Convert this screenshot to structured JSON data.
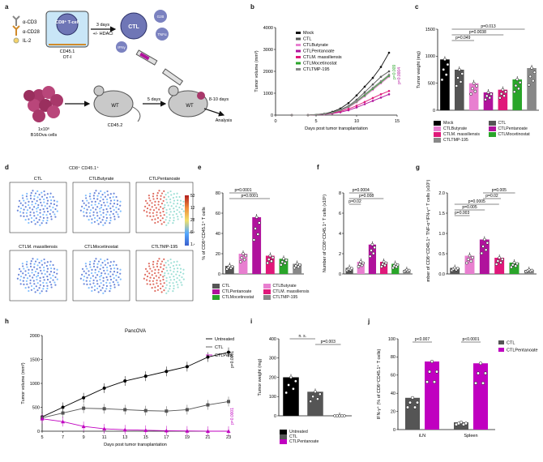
{
  "figure": {
    "panel_labels": [
      "a",
      "b",
      "c",
      "d",
      "e",
      "f",
      "g",
      "h",
      "i",
      "j"
    ]
  },
  "panel_a": {
    "antibodies": [
      "α-CD3",
      "α-CD28",
      "IL-2"
    ],
    "cell_label": "CD8⁺ T-cell",
    "cell_sub": "CD45.1 OT-I",
    "step_label": "3 days",
    "step_sub": "+/- HDACi",
    "ctl_label": "CTL",
    "cytokines": [
      "GzB",
      "TNFα",
      "IFNγ"
    ],
    "mouse1": "WT",
    "mouse1_sub": "CD45.2",
    "tumor_cells": "1x10⁶",
    "tumor_sub": "B16Ova cells",
    "mouse2": "WT",
    "days5": "5 days",
    "days810": "8-10 days",
    "analysis": "Analysis"
  },
  "chart_data": [
    {
      "id": "b",
      "type": "line",
      "title": "",
      "xlabel": "Days post tumor transplantation",
      "ylabel": "Tumor volume (mm³)",
      "x": [
        2,
        4,
        6,
        7,
        8,
        9,
        10,
        11,
        12,
        13,
        14
      ],
      "xlim": [
        0,
        15
      ],
      "ylim": [
        0,
        4000
      ],
      "xticks": [
        "0",
        "5",
        "10",
        "15"
      ],
      "yticks": [
        "0",
        "1000",
        "2000",
        "3000",
        "4000"
      ],
      "series": [
        {
          "name": "Mock",
          "color": "#111111",
          "values": [
            0,
            0,
            60,
            150,
            300,
            550,
            900,
            1300,
            1700,
            2200,
            2850
          ]
        },
        {
          "name": "CTL",
          "color": "#555555",
          "values": [
            0,
            0,
            50,
            120,
            250,
            420,
            700,
            1050,
            1400,
            1750,
            2000
          ]
        },
        {
          "name": "CTL Butyrate",
          "color": "#e87fd0",
          "values": [
            0,
            0,
            40,
            100,
            200,
            350,
            580,
            850,
            1150,
            1450,
            1750
          ]
        },
        {
          "name": "CTL Pentanoate",
          "color": "#b0129c",
          "values": [
            0,
            0,
            30,
            70,
            130,
            220,
            350,
            500,
            650,
            800,
            950
          ]
        },
        {
          "name": "CTL M. massiliensis",
          "color": "#e0187a",
          "values": [
            0,
            0,
            40,
            90,
            170,
            280,
            430,
            600,
            780,
            950,
            1100
          ]
        },
        {
          "name": "CTL Mocetinostat",
          "color": "#2aa52a",
          "values": [
            0,
            0,
            45,
            110,
            220,
            380,
            620,
            900,
            1200,
            1500,
            1800
          ]
        },
        {
          "name": "CTL TMP-195",
          "color": "#888888",
          "values": [
            0,
            0,
            45,
            110,
            220,
            390,
            640,
            950,
            1250,
            1550,
            1850
          ]
        }
      ],
      "legend": [
        "Mock",
        "CTL",
        "CTLButyrate",
        "CTLPentanoate",
        "CTLM. massiliensis",
        "CTLMocetinostat",
        "CTLTMP-195"
      ],
      "annotations": [
        "p=0.009",
        "p=0.0004"
      ]
    },
    {
      "id": "c",
      "type": "bar",
      "ylabel": "Tumor weight (mg)",
      "ylim": [
        0,
        1500
      ],
      "yticks": [
        "0",
        "500",
        "1000",
        "1500"
      ],
      "categories": [
        "Mock",
        "CTL",
        "CTLButyrate",
        "CTLPentanoate",
        "CTLM. massiliensis",
        "CTLMocetinostat",
        "CTLTMP-195"
      ],
      "values": [
        940,
        750,
        500,
        330,
        380,
        570,
        780
      ],
      "colors": [
        "#000000",
        "#555555",
        "#e87fd0",
        "#b0129c",
        "#e0187a",
        "#2aa52a",
        "#888888"
      ],
      "annotations": [
        "p=0.013",
        "p=0.0038",
        "p=0.049"
      ]
    },
    {
      "id": "e",
      "type": "bar",
      "ylabel": "% of CD8⁺CD45.1⁺ T cells",
      "ylim": [
        0,
        80
      ],
      "yticks": [
        "0",
        "20",
        "40",
        "60",
        "80"
      ],
      "categories": [
        "CTL",
        "CTLButyrate",
        "CTLPentanoate",
        "CTLM. massiliensis",
        "CTLMocetinostat",
        "CTLTMP-195"
      ],
      "values": [
        8,
        20,
        56,
        18,
        15,
        10
      ],
      "colors": [
        "#555555",
        "#e87fd0",
        "#b0129c",
        "#e0187a",
        "#2aa52a",
        "#888888"
      ],
      "annotations": [
        "p=0.0001",
        "p=0.0001"
      ]
    },
    {
      "id": "f",
      "type": "bar",
      "ylabel": "Number of CD8⁺CD45.1⁺ T cells (x10⁵)",
      "ylim": [
        0,
        8
      ],
      "yticks": [
        "0",
        "2",
        "4",
        "6",
        "8"
      ],
      "categories": [
        "CTL",
        "CTLButyrate",
        "CTLPentanoate",
        "CTLM. massiliensis",
        "CTLMocetinostat",
        "CTLTMP-195"
      ],
      "values": [
        0.6,
        1.2,
        2.9,
        1.2,
        1.0,
        0.4
      ],
      "colors": [
        "#555555",
        "#e87fd0",
        "#b0129c",
        "#e0187a",
        "#2aa52a",
        "#888888"
      ],
      "annotations": [
        "p=0.0004",
        "p=0.008",
        "p=0.02"
      ]
    },
    {
      "id": "g",
      "type": "bar",
      "ylabel": "Number of CD8⁺CD45.1⁺ TNF-α⁺IFN-γ⁺ T cells (x10⁵)",
      "ylim": [
        0,
        2.0
      ],
      "yticks": [
        "0.0",
        "0.5",
        "1.0",
        "1.5",
        "2.0"
      ],
      "categories": [
        "CTL",
        "CTLButyrate",
        "CTLPentanoate",
        "CTLM. massiliensis",
        "CTLMocetinostat",
        "CTLTMP-195"
      ],
      "values": [
        0.15,
        0.45,
        0.85,
        0.4,
        0.28,
        0.1
      ],
      "colors": [
        "#555555",
        "#e87fd0",
        "#b0129c",
        "#e0187a",
        "#2aa52a",
        "#888888"
      ],
      "annotations": [
        "p=0.005",
        "p=0.02",
        "p=0.0005",
        "p=0.005",
        "p=0.003"
      ]
    },
    {
      "id": "h",
      "type": "line",
      "title": "PancOVA",
      "xlabel": "Days post tumor transplantation",
      "ylabel": "Tumor volume (mm³)",
      "x": [
        5,
        7,
        9,
        11,
        13,
        15,
        17,
        19,
        21,
        23
      ],
      "xlim": [
        5,
        23
      ],
      "ylim": [
        0,
        2000
      ],
      "xticks": [
        "5",
        "7",
        "9",
        "11",
        "13",
        "15",
        "17",
        "19",
        "21",
        "23"
      ],
      "yticks": [
        "0",
        "500",
        "1000",
        "1500",
        "2000"
      ],
      "series": [
        {
          "name": "Untreated",
          "color": "#000000",
          "values": [
            300,
            500,
            700,
            900,
            1050,
            1150,
            1250,
            1350,
            1550,
            1650
          ]
        },
        {
          "name": "CTL",
          "color": "#555555",
          "values": [
            280,
            380,
            480,
            470,
            450,
            430,
            420,
            450,
            550,
            620
          ]
        },
        {
          "name": "CTLPent",
          "color": "#c000c0",
          "values": [
            260,
            200,
            100,
            50,
            30,
            20,
            10,
            5,
            0,
            0
          ]
        }
      ],
      "legend": [
        "Untreated",
        "CTL",
        "CTLPent"
      ],
      "annotations": [
        "p=0.0001",
        "p=0.0001"
      ]
    },
    {
      "id": "i",
      "type": "bar",
      "ylabel": "Tumor weight (mg)",
      "ylim": [
        0,
        400
      ],
      "yticks": [
        "0",
        "100",
        "200",
        "300",
        "400"
      ],
      "categories": [
        "Untreated",
        "CTL",
        "CTLPentanoate"
      ],
      "values": [
        200,
        125,
        0
      ],
      "colors": [
        "#000000",
        "#555555",
        "#c000c0"
      ],
      "annotations": [
        "n. s.",
        "p=0.003"
      ]
    },
    {
      "id": "j",
      "type": "bar",
      "ylabel": "IFN-γ⁺ (% of CD8⁺CD45.1⁺ T cells)",
      "ylim": [
        0,
        100
      ],
      "yticks": [
        "0",
        "20",
        "40",
        "60",
        "80",
        "100"
      ],
      "categories": [
        "iLN",
        "Spleen"
      ],
      "series": [
        {
          "name": "CTL",
          "values": [
            35,
            8
          ],
          "color": "#555555"
        },
        {
          "name": "CTLPentanoate",
          "values": [
            75,
            73
          ],
          "color": "#c000c0"
        }
      ],
      "annotations": [
        "p<0.007",
        "p<0.0001"
      ]
    }
  ],
  "panel_d": {
    "title": "CD8⁺ CD45.1⁺",
    "plots": [
      "CTL",
      "CTLButyrate",
      "CTLPentanoate",
      "CTLM. massiliensis",
      "CTLMocetinostat",
      "CTLTMP-195"
    ],
    "scale": [
      "532.7",
      "122.4",
      "28.13",
      "6.46",
      "1.48"
    ]
  }
}
